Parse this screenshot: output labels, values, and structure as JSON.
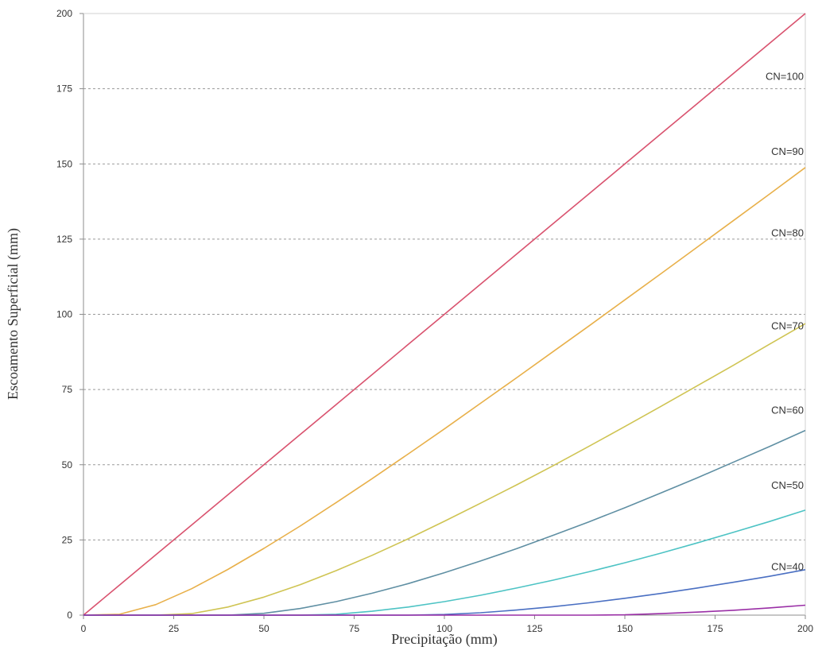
{
  "chart_data": {
    "type": "line",
    "title": "",
    "xlabel": "Precipitação (mm)",
    "ylabel": "Escoamento Superficial (mm)",
    "xlim": [
      0,
      200
    ],
    "ylim": [
      0,
      200
    ],
    "xticks": [
      0,
      25,
      50,
      75,
      100,
      125,
      150,
      175,
      200
    ],
    "yticks": [
      0,
      25,
      50,
      75,
      100,
      125,
      150,
      175,
      200
    ],
    "grid": "horizontal dotted",
    "legend": "none (inline series labels at right)",
    "series_x": [
      0,
      10,
      20,
      30,
      40,
      50,
      60,
      70,
      80,
      90,
      100,
      110,
      120,
      130,
      140,
      150,
      160,
      170,
      180,
      190,
      200
    ],
    "series": [
      {
        "name": "CN=100",
        "color": "#d9536f",
        "label_value": 179,
        "values": [
          0,
          10,
          20,
          30,
          40,
          50,
          60,
          70,
          80,
          90,
          100,
          110,
          120,
          130,
          140,
          150,
          160,
          170,
          180,
          190,
          200
        ]
      },
      {
        "name": "CN=90",
        "color": "#e8b04a",
        "label_value": 154,
        "values": [
          0,
          0.3,
          3.5,
          8.8,
          15.2,
          22.2,
          29.6,
          37.4,
          45.4,
          53.6,
          61.9,
          70.4,
          78.9,
          87.5,
          96.1,
          104.8,
          113.5,
          122.3,
          131.1,
          139.9,
          148.8
        ]
      },
      {
        "name": "CN=80",
        "color": "#cfc453",
        "label_value": 127,
        "values": [
          0,
          0,
          0,
          0.5,
          2.7,
          6.0,
          10.1,
          14.8,
          19.9,
          25.4,
          31.2,
          37.2,
          43.3,
          49.6,
          56.1,
          62.7,
          69.4,
          76.2,
          83.0,
          90.0,
          96.9
        ]
      },
      {
        "name": "CN=70",
        "color": "#5f8fa3",
        "label_value": 96,
        "values": [
          0,
          0,
          0,
          0,
          0,
          0.6,
          2.2,
          4.5,
          7.3,
          10.5,
          14.1,
          18.0,
          22.1,
          26.5,
          31.0,
          35.7,
          40.6,
          45.6,
          50.8,
          56.0,
          61.4
        ]
      },
      {
        "name": "CN=60",
        "color": "#4dc3c4",
        "label_value": 68,
        "values": [
          0,
          0,
          0,
          0,
          0,
          0,
          0,
          0.3,
          1.3,
          2.7,
          4.5,
          6.6,
          9.0,
          11.6,
          14.4,
          17.4,
          20.6,
          24.0,
          27.5,
          31.1,
          34.9
        ]
      },
      {
        "name": "CN=50",
        "color": "#4a6fc2",
        "label_value": 43,
        "values": [
          0,
          0,
          0,
          0,
          0,
          0,
          0,
          0,
          0,
          0,
          0.2,
          0.8,
          1.7,
          2.8,
          4.1,
          5.6,
          7.2,
          9.0,
          10.9,
          12.9,
          15.1
        ]
      },
      {
        "name": "CN=40",
        "color": "#9a2fa6",
        "label_value": 16,
        "values": [
          0,
          0,
          0,
          0,
          0,
          0,
          0,
          0,
          0,
          0,
          0,
          0,
          0,
          0,
          0,
          0.1,
          0.5,
          1.0,
          1.6,
          2.4,
          3.3
        ]
      }
    ]
  }
}
